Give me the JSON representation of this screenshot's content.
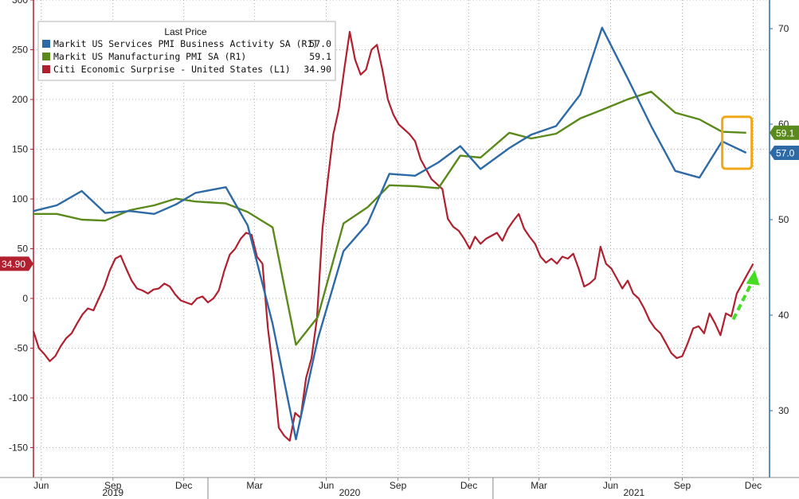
{
  "chart_data": {
    "type": "line",
    "title": "",
    "legend": {
      "title": "Last Price",
      "placement": "top-left",
      "entries": [
        {
          "label": "Markit US Services PMI Business Activity SA  (R1)",
          "value": "57.0",
          "color": "#2e6aa6"
        },
        {
          "label": "Markit US Manufacturing PMI SA  (R1)",
          "value": "59.1",
          "color": "#5b8a1c"
        },
        {
          "label": "Citi Economic Surprise - United States  (L1)",
          "value": "34.90",
          "color": "#b0202e"
        }
      ]
    },
    "x_axis": {
      "month_ticks": [
        "Jun",
        "Sep",
        "Dec",
        "Mar",
        "Jun",
        "Sep",
        "Dec",
        "Mar",
        "Jun",
        "Sep",
        "Dec"
      ],
      "year_labels": [
        "2019",
        "2020",
        "2021"
      ],
      "range": [
        "2019-05-22",
        "2021-12-22"
      ]
    },
    "y_left": {
      "ticks": [
        300,
        250,
        200,
        150,
        100,
        50,
        0,
        -50,
        -100,
        -150
      ],
      "ylim": [
        -180,
        300
      ]
    },
    "y_right": {
      "ticks": [
        70,
        60,
        50,
        40,
        30
      ],
      "ylim": [
        23,
        73
      ]
    },
    "grid": "dotted horizontal and vertical",
    "series": [
      {
        "name": "Markit US Services PMI Business Activity SA",
        "axis": "right",
        "color": "#2e6aa6",
        "last_value_tag": "57.0",
        "points": [
          [
            "2019-05-22",
            50.9
          ],
          [
            "2019-06-21",
            51.5
          ],
          [
            "2019-07-23",
            53.0
          ],
          [
            "2019-08-22",
            50.7
          ],
          [
            "2019-09-23",
            50.9
          ],
          [
            "2019-10-24",
            50.6
          ],
          [
            "2019-11-21",
            51.6
          ],
          [
            "2019-12-16",
            52.8
          ],
          [
            "2020-01-24",
            53.4
          ],
          [
            "2020-02-21",
            49.4
          ],
          [
            "2020-03-24",
            39.1
          ],
          [
            "2020-04-23",
            27.0
          ],
          [
            "2020-05-21",
            37.5
          ],
          [
            "2020-06-23",
            46.7
          ],
          [
            "2020-07-24",
            49.6
          ],
          [
            "2020-08-21",
            54.8
          ],
          [
            "2020-09-23",
            54.6
          ],
          [
            "2020-10-23",
            56.0
          ],
          [
            "2020-11-20",
            57.7
          ],
          [
            "2020-12-16",
            55.3
          ],
          [
            "2021-01-22",
            57.5
          ],
          [
            "2021-02-19",
            58.9
          ],
          [
            "2021-03-23",
            59.8
          ],
          [
            "2021-04-23",
            63.1
          ],
          [
            "2021-05-21",
            70.1
          ],
          [
            "2021-06-23",
            64.8
          ],
          [
            "2021-07-23",
            59.8
          ],
          [
            "2021-08-23",
            55.1
          ],
          [
            "2021-09-23",
            54.4
          ],
          [
            "2021-10-22",
            58.2
          ],
          [
            "2021-11-22",
            57.0
          ]
        ]
      },
      {
        "name": "Markit US Manufacturing PMI SA",
        "axis": "right",
        "color": "#5b8a1c",
        "last_value_tag": "59.1",
        "points": [
          [
            "2019-05-22",
            50.6
          ],
          [
            "2019-06-21",
            50.6
          ],
          [
            "2019-07-23",
            50.0
          ],
          [
            "2019-08-22",
            49.9
          ],
          [
            "2019-09-23",
            51.0
          ],
          [
            "2019-10-24",
            51.5
          ],
          [
            "2019-11-21",
            52.2
          ],
          [
            "2019-12-16",
            51.9
          ],
          [
            "2020-01-24",
            51.7
          ],
          [
            "2020-02-21",
            50.8
          ],
          [
            "2020-03-24",
            49.2
          ],
          [
            "2020-04-23",
            36.9
          ],
          [
            "2020-05-21",
            39.8
          ],
          [
            "2020-06-23",
            49.6
          ],
          [
            "2020-07-24",
            51.3
          ],
          [
            "2020-08-21",
            53.6
          ],
          [
            "2020-09-23",
            53.5
          ],
          [
            "2020-10-23",
            53.3
          ],
          [
            "2020-11-20",
            56.7
          ],
          [
            "2020-12-16",
            56.5
          ],
          [
            "2021-01-22",
            59.1
          ],
          [
            "2021-02-19",
            58.5
          ],
          [
            "2021-03-23",
            59.0
          ],
          [
            "2021-04-23",
            60.6
          ],
          [
            "2021-05-21",
            61.5
          ],
          [
            "2021-06-23",
            62.6
          ],
          [
            "2021-07-23",
            63.4
          ],
          [
            "2021-08-23",
            61.2
          ],
          [
            "2021-09-23",
            60.5
          ],
          [
            "2021-10-22",
            59.2
          ],
          [
            "2021-11-22",
            59.1
          ]
        ]
      },
      {
        "name": "Citi Economic Surprise - United States",
        "axis": "left",
        "color": "#b0202e",
        "last_value_tag": "34.90",
        "points": [
          [
            "2019-05-22",
            -33
          ],
          [
            "2019-05-29",
            -50
          ],
          [
            "2019-06-05",
            -56
          ],
          [
            "2019-06-12",
            -63
          ],
          [
            "2019-06-19",
            -58
          ],
          [
            "2019-06-26",
            -48
          ],
          [
            "2019-07-03",
            -40
          ],
          [
            "2019-07-10",
            -35
          ],
          [
            "2019-07-17",
            -25
          ],
          [
            "2019-07-24",
            -16
          ],
          [
            "2019-07-31",
            -10
          ],
          [
            "2019-08-07",
            -12
          ],
          [
            "2019-08-14",
            0
          ],
          [
            "2019-08-21",
            12
          ],
          [
            "2019-08-28",
            28
          ],
          [
            "2019-09-04",
            40
          ],
          [
            "2019-09-11",
            43
          ],
          [
            "2019-09-18",
            30
          ],
          [
            "2019-09-25",
            18
          ],
          [
            "2019-10-02",
            10
          ],
          [
            "2019-10-09",
            8
          ],
          [
            "2019-10-16",
            5
          ],
          [
            "2019-10-23",
            9
          ],
          [
            "2019-10-30",
            10
          ],
          [
            "2019-11-06",
            15
          ],
          [
            "2019-11-13",
            12
          ],
          [
            "2019-11-20",
            4
          ],
          [
            "2019-11-27",
            -2
          ],
          [
            "2019-12-04",
            -4
          ],
          [
            "2019-12-11",
            -6
          ],
          [
            "2019-12-18",
            0
          ],
          [
            "2019-12-25",
            2
          ],
          [
            "2020-01-01",
            -4
          ],
          [
            "2020-01-08",
            0
          ],
          [
            "2020-01-15",
            8
          ],
          [
            "2020-01-22",
            28
          ],
          [
            "2020-01-29",
            44
          ],
          [
            "2020-02-05",
            50
          ],
          [
            "2020-02-12",
            60
          ],
          [
            "2020-02-19",
            66
          ],
          [
            "2020-02-26",
            64
          ],
          [
            "2020-03-04",
            42
          ],
          [
            "2020-03-11",
            35
          ],
          [
            "2020-03-18",
            -30
          ],
          [
            "2020-03-25",
            -75
          ],
          [
            "2020-04-01",
            -130
          ],
          [
            "2020-04-08",
            -138
          ],
          [
            "2020-04-15",
            -143
          ],
          [
            "2020-04-22",
            -115
          ],
          [
            "2020-04-29",
            -120
          ],
          [
            "2020-05-06",
            -80
          ],
          [
            "2020-05-13",
            -60
          ],
          [
            "2020-05-20",
            -20
          ],
          [
            "2020-05-27",
            70
          ],
          [
            "2020-06-03",
            120
          ],
          [
            "2020-06-10",
            165
          ],
          [
            "2020-06-17",
            190
          ],
          [
            "2020-06-24",
            230
          ],
          [
            "2020-07-01",
            268
          ],
          [
            "2020-07-08",
            240
          ],
          [
            "2020-07-15",
            225
          ],
          [
            "2020-07-22",
            230
          ],
          [
            "2020-07-29",
            250
          ],
          [
            "2020-08-05",
            255
          ],
          [
            "2020-08-12",
            230
          ],
          [
            "2020-08-19",
            200
          ],
          [
            "2020-08-26",
            185
          ],
          [
            "2020-09-02",
            175
          ],
          [
            "2020-09-09",
            170
          ],
          [
            "2020-09-16",
            165
          ],
          [
            "2020-09-23",
            158
          ],
          [
            "2020-09-30",
            140
          ],
          [
            "2020-10-07",
            130
          ],
          [
            "2020-10-14",
            120
          ],
          [
            "2020-10-21",
            115
          ],
          [
            "2020-10-28",
            110
          ],
          [
            "2020-11-04",
            80
          ],
          [
            "2020-11-11",
            72
          ],
          [
            "2020-11-18",
            68
          ],
          [
            "2020-11-25",
            60
          ],
          [
            "2020-12-02",
            50
          ],
          [
            "2020-12-09",
            62
          ],
          [
            "2020-12-16",
            55
          ],
          [
            "2020-12-23",
            60
          ],
          [
            "2021-01-06",
            66
          ],
          [
            "2021-01-13",
            58
          ],
          [
            "2021-01-20",
            70
          ],
          [
            "2021-01-27",
            78
          ],
          [
            "2021-02-03",
            85
          ],
          [
            "2021-02-10",
            70
          ],
          [
            "2021-02-17",
            62
          ],
          [
            "2021-02-24",
            55
          ],
          [
            "2021-03-03",
            42
          ],
          [
            "2021-03-10",
            36
          ],
          [
            "2021-03-17",
            40
          ],
          [
            "2021-03-24",
            35
          ],
          [
            "2021-03-31",
            42
          ],
          [
            "2021-04-07",
            40
          ],
          [
            "2021-04-14",
            45
          ],
          [
            "2021-04-21",
            30
          ],
          [
            "2021-04-28",
            12
          ],
          [
            "2021-05-05",
            15
          ],
          [
            "2021-05-12",
            20
          ],
          [
            "2021-05-19",
            52
          ],
          [
            "2021-05-26",
            35
          ],
          [
            "2021-06-02",
            30
          ],
          [
            "2021-06-09",
            20
          ],
          [
            "2021-06-16",
            10
          ],
          [
            "2021-06-23",
            18
          ],
          [
            "2021-06-30",
            5
          ],
          [
            "2021-07-07",
            0
          ],
          [
            "2021-07-14",
            -10
          ],
          [
            "2021-07-21",
            -22
          ],
          [
            "2021-07-28",
            -30
          ],
          [
            "2021-08-04",
            -35
          ],
          [
            "2021-08-11",
            -45
          ],
          [
            "2021-08-18",
            -55
          ],
          [
            "2021-08-25",
            -60
          ],
          [
            "2021-09-01",
            -58
          ],
          [
            "2021-09-08",
            -45
          ],
          [
            "2021-09-15",
            -30
          ],
          [
            "2021-09-22",
            -28
          ],
          [
            "2021-09-29",
            -35
          ],
          [
            "2021-10-06",
            -15
          ],
          [
            "2021-10-13",
            -25
          ],
          [
            "2021-10-20",
            -37
          ],
          [
            "2021-10-27",
            -15
          ],
          [
            "2021-11-03",
            -18
          ],
          [
            "2021-11-10",
            5
          ],
          [
            "2021-11-17",
            15
          ],
          [
            "2021-11-24",
            25
          ],
          [
            "2021-12-01",
            34.9
          ]
        ]
      }
    ],
    "annotations": [
      {
        "type": "highlight-box",
        "color": "#f0a818",
        "around": "latest PMI values (Nov 2021)"
      },
      {
        "type": "dashed-arrow",
        "color": "#44dd22",
        "direction": "up",
        "near": "latest Citi Economic Surprise value"
      }
    ]
  }
}
